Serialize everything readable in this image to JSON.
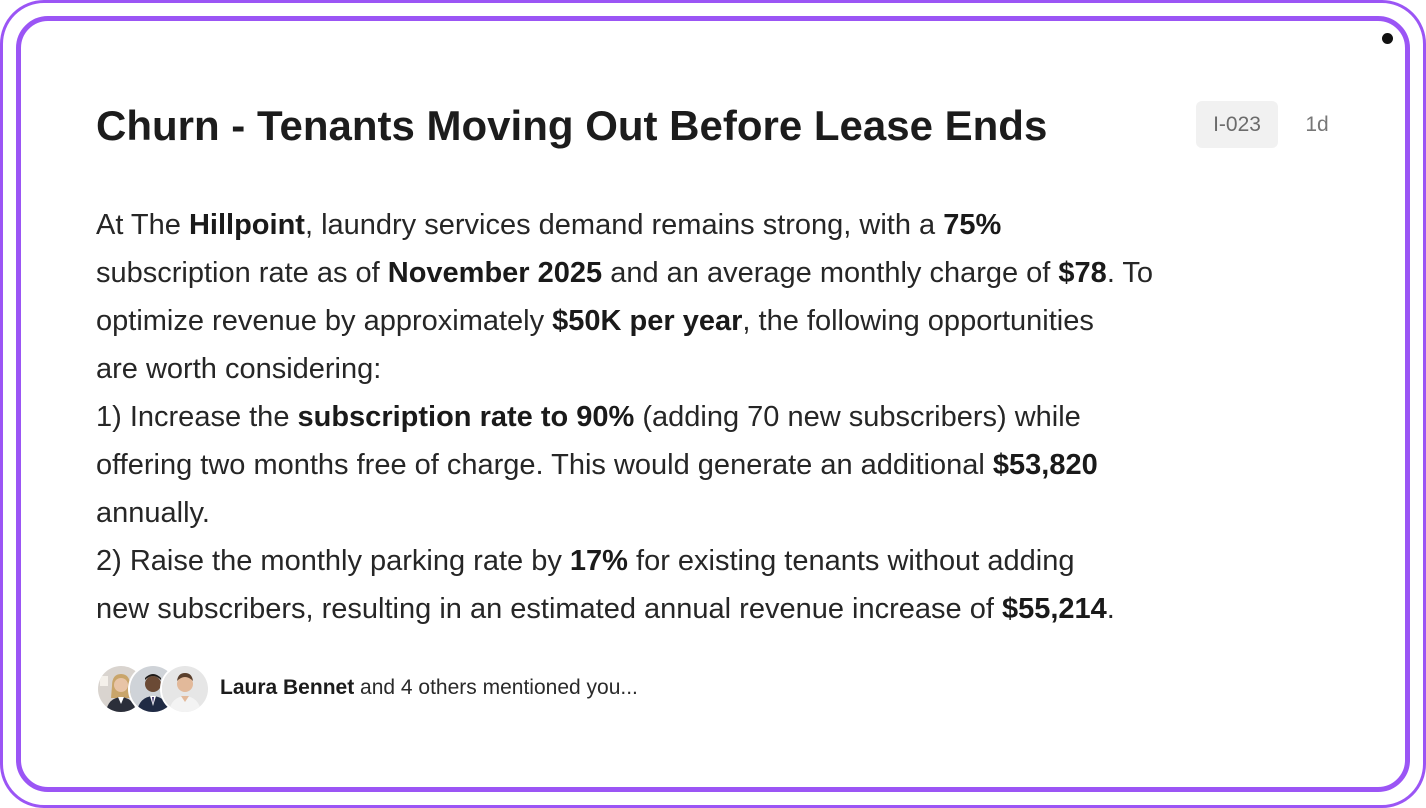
{
  "card": {
    "title": "Churn - Tenants Moving Out Before Lease Ends",
    "id": "I-023",
    "age": "1d",
    "colors": {
      "border": "#9b55f5",
      "badge_bg": "#f1f1f1",
      "unread_dot": "#111111"
    },
    "body": {
      "line1": {
        "p1": "At The ",
        "b1": "Hillpoint",
        "p2": ", laundry services demand remains strong, with a ",
        "b2": "75%"
      },
      "line2": {
        "p1": "subscription rate as of ",
        "b1": "November 2025",
        "p2": " and an average monthly charge of ",
        "b2": "$78",
        "p3": ". To"
      },
      "line3": {
        "p1": "optimize revenue by approximately ",
        "b1": "$50K per year",
        "p2": ", the following opportunities"
      },
      "line4": {
        "p1": "are worth considering:"
      },
      "line5": {
        "p1": "1) Increase the ",
        "b1": "subscription rate to 90%",
        "p2": " (adding 70 new subscribers) while"
      },
      "line6": {
        "p1": "offering two months free of charge. This would generate an additional ",
        "b1": "$53,820"
      },
      "line7": {
        "p1": "annually."
      },
      "line8": {
        "p1": "2) Raise the monthly parking rate by ",
        "b1": "17%",
        "p2": " for existing tenants without adding"
      },
      "line9": {
        "p1": "new subscribers, resulting in an estimated annual revenue increase of ",
        "b1": "$55,214",
        "p2": "."
      }
    },
    "footer": {
      "avatars": [
        "avatar-1",
        "avatar-2",
        "avatar-3"
      ],
      "mention_name": "Laura Bennet",
      "mention_rest": " and 4 others mentioned you..."
    }
  }
}
